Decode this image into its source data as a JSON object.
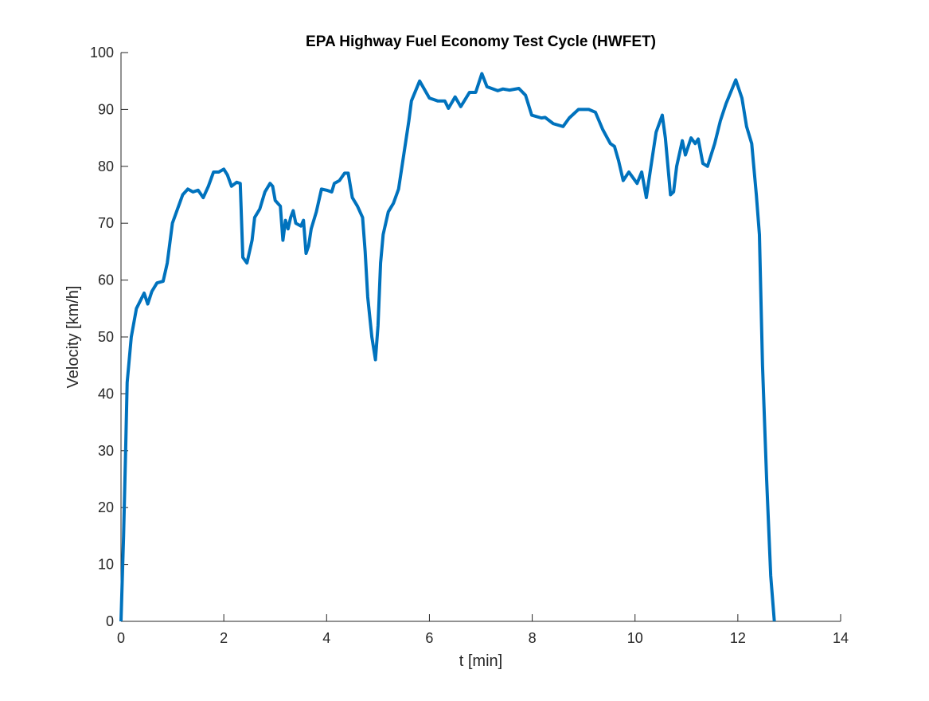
{
  "chart_data": {
    "type": "line",
    "title": "EPA Highway Fuel Economy Test Cycle (HWFET)",
    "x_label": "t [min]",
    "y_label": "Velocity [km/h]",
    "xlim": [
      0,
      14
    ],
    "xticks": [
      0,
      2,
      4,
      6,
      8,
      10,
      12,
      14
    ],
    "ylim": [
      0,
      100
    ],
    "yticks": [
      0,
      10,
      20,
      30,
      40,
      50,
      60,
      70,
      80,
      90,
      100
    ],
    "x": [
      0,
      0.05,
      0.09,
      0.12,
      0.2,
      0.3,
      0.45,
      0.52,
      0.6,
      0.7,
      0.82,
      0.9,
      1.0,
      1.1,
      1.2,
      1.3,
      1.4,
      1.5,
      1.6,
      1.7,
      1.8,
      1.9,
      2.0,
      2.07,
      2.15,
      2.25,
      2.32,
      2.37,
      2.45,
      2.55,
      2.6,
      2.7,
      2.8,
      2.9,
      2.95,
      3.0,
      3.1,
      3.15,
      3.2,
      3.25,
      3.3,
      3.35,
      3.4,
      3.5,
      3.55,
      3.6,
      3.65,
      3.7,
      3.8,
      3.9,
      4.0,
      4.1,
      4.15,
      4.25,
      4.35,
      4.42,
      4.5,
      4.6,
      4.7,
      4.75,
      4.8,
      4.88,
      4.95,
      5.0,
      5.05,
      5.1,
      5.2,
      5.3,
      5.4,
      5.5,
      5.6,
      5.65,
      5.81,
      6.0,
      6.16,
      6.3,
      6.37,
      6.5,
      6.61,
      6.78,
      6.9,
      7.02,
      7.12,
      7.33,
      7.43,
      7.56,
      7.74,
      7.87,
      7.99,
      8.18,
      8.25,
      8.41,
      8.6,
      8.72,
      8.9,
      9.1,
      9.23,
      9.37,
      9.52,
      9.6,
      9.68,
      9.77,
      9.88,
      10.04,
      10.13,
      10.22,
      10.31,
      10.41,
      10.53,
      10.59,
      10.69,
      10.75,
      10.81,
      10.92,
      10.98,
      11.09,
      11.17,
      11.23,
      11.32,
      11.41,
      11.55,
      11.66,
      11.77,
      11.86,
      11.96,
      12.08,
      12.17,
      12.27,
      12.36,
      12.42,
      12.48,
      12.56,
      12.64,
      12.71
    ],
    "series": [
      {
        "name": "Velocity",
        "color": "#0072bd",
        "values": [
          0,
          15,
          30,
          42,
          50,
          55,
          57.7,
          55.8,
          58,
          59.5,
          59.8,
          63,
          70,
          72.5,
          75,
          76,
          75.5,
          75.8,
          74.5,
          76.5,
          79,
          79,
          79.5,
          78.5,
          76.5,
          77.2,
          77,
          64,
          63,
          67,
          71,
          72.5,
          75.5,
          77,
          76.5,
          74,
          73,
          67,
          70.5,
          69,
          71,
          72.2,
          70,
          69.5,
          70.5,
          64.7,
          66,
          69,
          72,
          76,
          75.8,
          75.5,
          77,
          77.5,
          78.8,
          78.8,
          74.5,
          73,
          71,
          65,
          57,
          50,
          46,
          52,
          63,
          68,
          72,
          73.5,
          76,
          82,
          88,
          91.5,
          95,
          92,
          91.5,
          91.5,
          90.2,
          92.2,
          90.5,
          93,
          93,
          96.3,
          94,
          93.3,
          93.6,
          93.4,
          93.7,
          92.5,
          89,
          88.5,
          88.6,
          87.5,
          87,
          88.5,
          90,
          90,
          89.5,
          86.5,
          84,
          83.5,
          81,
          77.5,
          79,
          77,
          79,
          74.5,
          80,
          86,
          89,
          85,
          75,
          75.5,
          80,
          84.5,
          82,
          85,
          84,
          84.8,
          80.5,
          80,
          84,
          88,
          91,
          93,
          95.2,
          92,
          87,
          84,
          75,
          68,
          45,
          25,
          8,
          0
        ]
      }
    ]
  }
}
